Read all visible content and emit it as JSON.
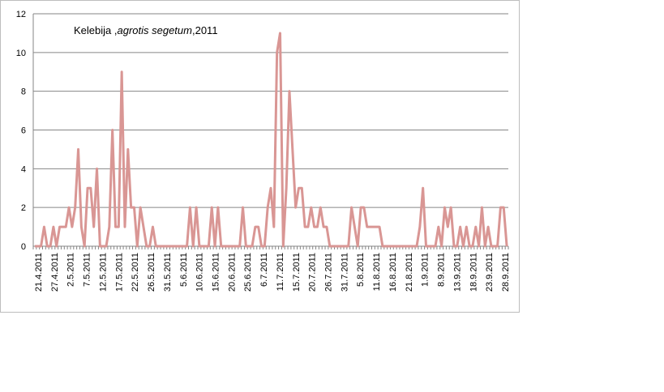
{
  "chart_data": {
    "type": "line",
    "title_parts": [
      "Kelebija ,",
      "agrotis segetum",
      ",2011"
    ],
    "xlabel": "",
    "ylabel": "",
    "ylim": [
      0,
      12
    ],
    "yticks": [
      0,
      2,
      4,
      6,
      8,
      10,
      12
    ],
    "grid": true,
    "legend": "none",
    "line_color": "#d99694",
    "x_tick_labels": [
      "21.4.2011",
      "27.4.2011",
      "2.5.2011",
      "7.5.2011",
      "12.5.2011",
      "17.5.2011",
      "22.5.2011",
      "26.5.2011",
      "31.5.2011",
      "5.6.2011",
      "10.6.2011",
      "15.6.2011",
      "20.6.2011",
      "25.6.2011",
      "6.7.2011",
      "11.7.2011",
      "15.7.2011",
      "20.7.2011",
      "26.7.2011",
      "31.7.2011",
      "5.8.2011",
      "11.8.2011",
      "16.8.2011",
      "21.8.2011",
      "1.9.2011",
      "8.9.2011",
      "13.9.2011",
      "18.9.2011",
      "23.9.2011",
      "28.9.2011"
    ],
    "values": [
      0,
      0,
      0,
      1,
      0,
      0,
      1,
      0,
      1,
      1,
      1,
      2,
      1,
      2,
      5,
      1,
      0,
      3,
      3,
      1,
      4,
      0,
      0,
      0,
      1,
      6,
      1,
      1,
      9,
      1,
      5,
      2,
      2,
      0,
      2,
      1,
      0,
      0,
      1,
      0,
      0,
      0,
      0,
      0,
      0,
      0,
      0,
      0,
      0,
      0,
      2,
      0,
      2,
      0,
      0,
      0,
      0,
      2,
      0,
      2,
      0,
      0,
      0,
      0,
      0,
      0,
      0,
      2,
      0,
      0,
      0,
      1,
      1,
      0,
      0,
      2,
      3,
      1,
      10,
      11,
      0,
      3,
      8,
      5,
      2,
      3,
      3,
      1,
      1,
      2,
      1,
      1,
      2,
      1,
      1,
      0,
      0,
      0,
      0,
      0,
      0,
      0,
      2,
      1,
      0,
      2,
      2,
      1,
      1,
      1,
      1,
      1,
      0,
      0,
      0,
      0,
      0,
      0,
      0,
      0,
      0,
      0,
      0,
      0,
      1,
      3,
      0,
      0,
      0,
      0,
      1,
      0,
      2,
      1,
      2,
      0,
      0,
      1,
      0,
      1,
      0,
      0,
      1,
      0,
      2,
      0,
      1,
      0,
      0,
      0,
      2,
      2,
      0
    ]
  }
}
